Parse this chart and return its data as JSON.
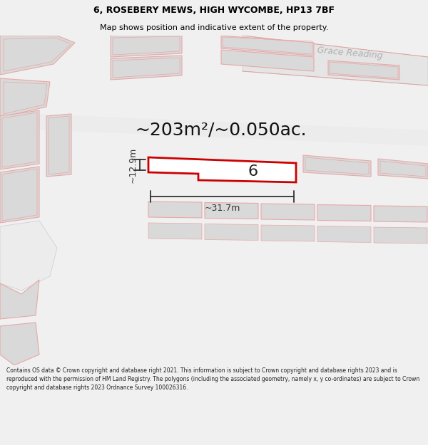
{
  "title": "6, ROSEBERY MEWS, HIGH WYCOMBE, HP13 7BF",
  "subtitle": "Map shows position and indicative extent of the property.",
  "area_text": "~203m²/~0.050ac.",
  "dim_width": "~31.7m",
  "dim_height": "~12.9m",
  "plot_number": "6",
  "road_label": "Grace Reading",
  "footer": "Contains OS data © Crown copyright and database right 2021. This information is subject to Crown copyright and database rights 2023 and is reproduced with the permission of HM Land Registry. The polygons (including the associated geometry, namely x, y co-ordinates) are subject to Crown copyright and database rights 2023 Ordnance Survey 100026316.",
  "bg_color": "#f0f0f0",
  "map_bg": "#ffffff",
  "building_fill": "#d9d9d9",
  "highlight_edge": "#cc0000",
  "highlight_fill": "#ffffff",
  "stroke_light": "#e8a8a8",
  "dim_color": "#333333",
  "road_text_color": "#b0b0b0",
  "title_color": "#000000",
  "footer_color": "#222222",
  "title_fontsize": 9.0,
  "subtitle_fontsize": 8.0,
  "footer_fontsize": 5.5,
  "area_fontsize": 18,
  "plot_label_fontsize": 16,
  "dim_fontsize": 9
}
